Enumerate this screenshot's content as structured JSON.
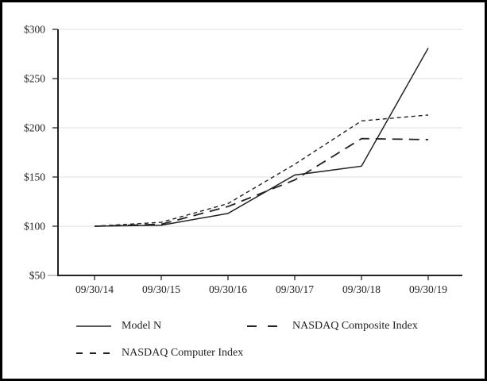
{
  "colors": {
    "line": "#222222",
    "grid": "#dcdcdc",
    "text": "#222222",
    "border": "#000000"
  },
  "legend": {
    "items": [
      {
        "label": "Model N",
        "style": "solid"
      },
      {
        "label": "NASDAQ Composite Index",
        "style": "long-dash"
      },
      {
        "label": "NASDAQ Computer Index",
        "style": "short-dash"
      }
    ]
  },
  "chart_data": {
    "type": "line",
    "title": "",
    "xlabel": "",
    "ylabel": "",
    "categories": [
      "09/30/14",
      "09/30/15",
      "09/30/16",
      "09/30/17",
      "09/30/18",
      "09/30/19"
    ],
    "series": [
      {
        "name": "Model N",
        "style": "solid",
        "values": [
          100,
          101,
          113,
          152,
          161,
          281
        ]
      },
      {
        "name": "NASDAQ Composite Index",
        "style": "long-dash",
        "values": [
          100,
          102,
          120,
          147,
          189,
          188
        ]
      },
      {
        "name": "NASDAQ Computer Index",
        "style": "short-dash",
        "values": [
          100,
          104,
          123,
          163,
          207,
          213
        ]
      }
    ],
    "y_ticks": [
      {
        "label": "$300",
        "value": 300
      },
      {
        "label": "$250",
        "value": 250
      },
      {
        "label": "$200",
        "value": 200
      },
      {
        "label": "$150",
        "value": 150
      },
      {
        "label": "$100",
        "value": 100
      },
      {
        "label": "$50",
        "value": 50
      }
    ],
    "ylim": [
      50,
      300
    ],
    "grid": true,
    "legend_position": "bottom"
  }
}
